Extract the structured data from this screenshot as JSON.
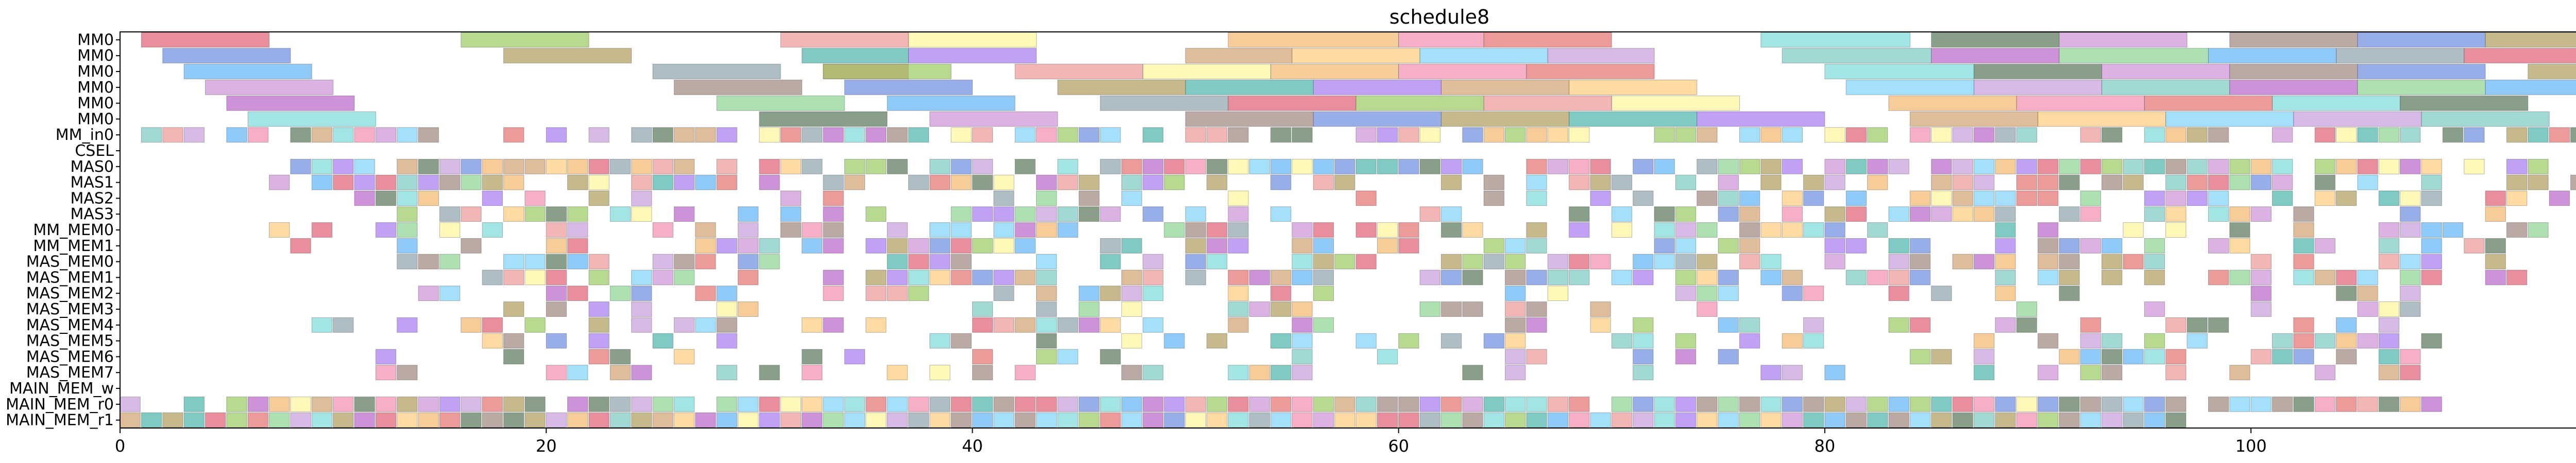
{
  "chart_data": {
    "type": "gantt",
    "title": "schedule8",
    "xlim": [
      0,
      119
    ],
    "x_ticks": [
      0,
      20,
      40,
      60,
      80,
      100
    ],
    "grid": false,
    "rows": [
      "MM0",
      "MM0",
      "MM0",
      "MM0",
      "MM0",
      "MM0",
      "MM_in0",
      "CSEL",
      "MAS0",
      "MAS1",
      "MAS2",
      "MAS3",
      "MM_MEM0",
      "MM_MEM1",
      "MAS_MEM0",
      "MAS_MEM1",
      "MAS_MEM2",
      "MAS_MEM3",
      "MAS_MEM4",
      "MAS_MEM5",
      "MAS_MEM6",
      "MAS_MEM7",
      "MAIN_MEM_w",
      "MAIN_MEM_r0",
      "MAIN_MEM_r1"
    ],
    "palette": [
      "#e06377",
      "#7fdbda",
      "#a97df2",
      "#8fd694",
      "#f2b872",
      "#6f8fe0",
      "#c9a0dc",
      "#9ccc65",
      "#5c7a5c",
      "#d4a373",
      "#64b5f6",
      "#f48fb1",
      "#b0a060",
      "#80cbc4",
      "#ef9a9a",
      "#ce93d8",
      "#ffcc80",
      "#90a4ae",
      "#e57373",
      "#4db6ac",
      "#ba68c8",
      "#fff59d",
      "#a1887f",
      "#81d4fa"
    ],
    "long_tasks": {
      "MM0": [
        [
          [
            1,
            7
          ],
          [
            16,
            22
          ],
          [
            31,
            37
          ],
          [
            37,
            43
          ],
          [
            52,
            60
          ],
          [
            60,
            64
          ],
          [
            64,
            70
          ],
          [
            77,
            84
          ],
          [
            85,
            91
          ],
          [
            91,
            97
          ],
          [
            99,
            105
          ],
          [
            105,
            111
          ],
          [
            111,
            117
          ]
        ],
        [
          [
            2,
            8
          ],
          [
            18,
            24
          ],
          [
            32,
            37
          ],
          [
            37,
            43
          ],
          [
            50,
            55
          ],
          [
            55,
            61
          ],
          [
            61,
            67
          ],
          [
            67,
            72
          ],
          [
            78,
            85
          ],
          [
            85,
            91
          ],
          [
            91,
            98
          ],
          [
            98,
            104
          ],
          [
            104,
            110
          ],
          [
            110,
            117
          ]
        ],
        [
          [
            3,
            9
          ],
          [
            25,
            31
          ],
          [
            33,
            37
          ],
          [
            33,
            39
          ],
          [
            42,
            48
          ],
          [
            48,
            54
          ],
          [
            54,
            60
          ],
          [
            60,
            66
          ],
          [
            66,
            72
          ],
          [
            80,
            87
          ],
          [
            87,
            93
          ],
          [
            93,
            99
          ],
          [
            99,
            105
          ],
          [
            105,
            111
          ],
          [
            113,
            119
          ]
        ],
        [
          [
            4,
            10
          ],
          [
            26,
            32
          ],
          [
            34,
            40
          ],
          [
            44,
            50
          ],
          [
            50,
            56
          ],
          [
            56,
            62
          ],
          [
            62,
            68
          ],
          [
            68,
            74
          ],
          [
            81,
            87
          ],
          [
            87,
            93
          ],
          [
            93,
            99
          ],
          [
            99,
            105
          ],
          [
            105,
            111
          ],
          [
            111,
            117
          ]
        ],
        [
          [
            5,
            11
          ],
          [
            28,
            34
          ],
          [
            36,
            42
          ],
          [
            46,
            52
          ],
          [
            52,
            58
          ],
          [
            58,
            64
          ],
          [
            64,
            70
          ],
          [
            70,
            76
          ],
          [
            83,
            89
          ],
          [
            89,
            95
          ],
          [
            95,
            101
          ],
          [
            101,
            107
          ],
          [
            107,
            113
          ]
        ],
        [
          [
            6,
            12
          ],
          [
            30,
            36
          ],
          [
            38,
            44
          ],
          [
            50,
            56
          ],
          [
            56,
            62
          ],
          [
            62,
            68
          ],
          [
            68,
            74
          ],
          [
            74,
            80
          ],
          [
            84,
            90
          ],
          [
            90,
            96
          ],
          [
            96,
            102
          ],
          [
            102,
            108
          ],
          [
            108,
            114
          ]
        ]
      ]
    },
    "short_task_density": {
      "MM_in0": 0.75,
      "CSEL": 0.0,
      "MAS0": 0.78,
      "MAS1": 0.62,
      "MAS2": 0.5,
      "MAS3": 0.55,
      "MM_MEM0": 0.5,
      "MM_MEM1": 0.52,
      "MAS_MEM0": 0.55,
      "MAS_MEM1": 0.62,
      "MAS_MEM2": 0.35,
      "MAS_MEM3": 0.3,
      "MAS_MEM4": 0.35,
      "MAS_MEM5": 0.3,
      "MAS_MEM6": 0.35,
      "MAS_MEM7": 0.4,
      "MAIN_MEM_w": 0.0,
      "MAIN_MEM_r0": 0.95,
      "MAIN_MEM_r1": 0.95
    },
    "short_task_span": {
      "MM_in0": [
        0,
        117
      ],
      "MAS0": [
        8,
        115
      ],
      "MAS1": [
        7,
        117
      ],
      "MAS2": [
        11,
        115
      ],
      "MAS3": [
        8,
        112
      ],
      "MM_MEM0": [
        7,
        114
      ],
      "MM_MEM1": [
        7,
        114
      ],
      "MAS_MEM0": [
        13,
        113
      ],
      "MAS_MEM1": [
        13,
        113
      ],
      "MAS_MEM2": [
        13,
        108
      ],
      "MAS_MEM3": [
        17,
        108
      ],
      "MAS_MEM4": [
        9,
        109
      ],
      "MAS_MEM5": [
        9,
        110
      ],
      "MAS_MEM6": [
        12,
        108
      ],
      "MAS_MEM7": [
        11,
        112
      ],
      "MAIN_MEM_r0": [
        0,
        110
      ],
      "MAIN_MEM_r1": [
        0,
        97
      ]
    }
  }
}
